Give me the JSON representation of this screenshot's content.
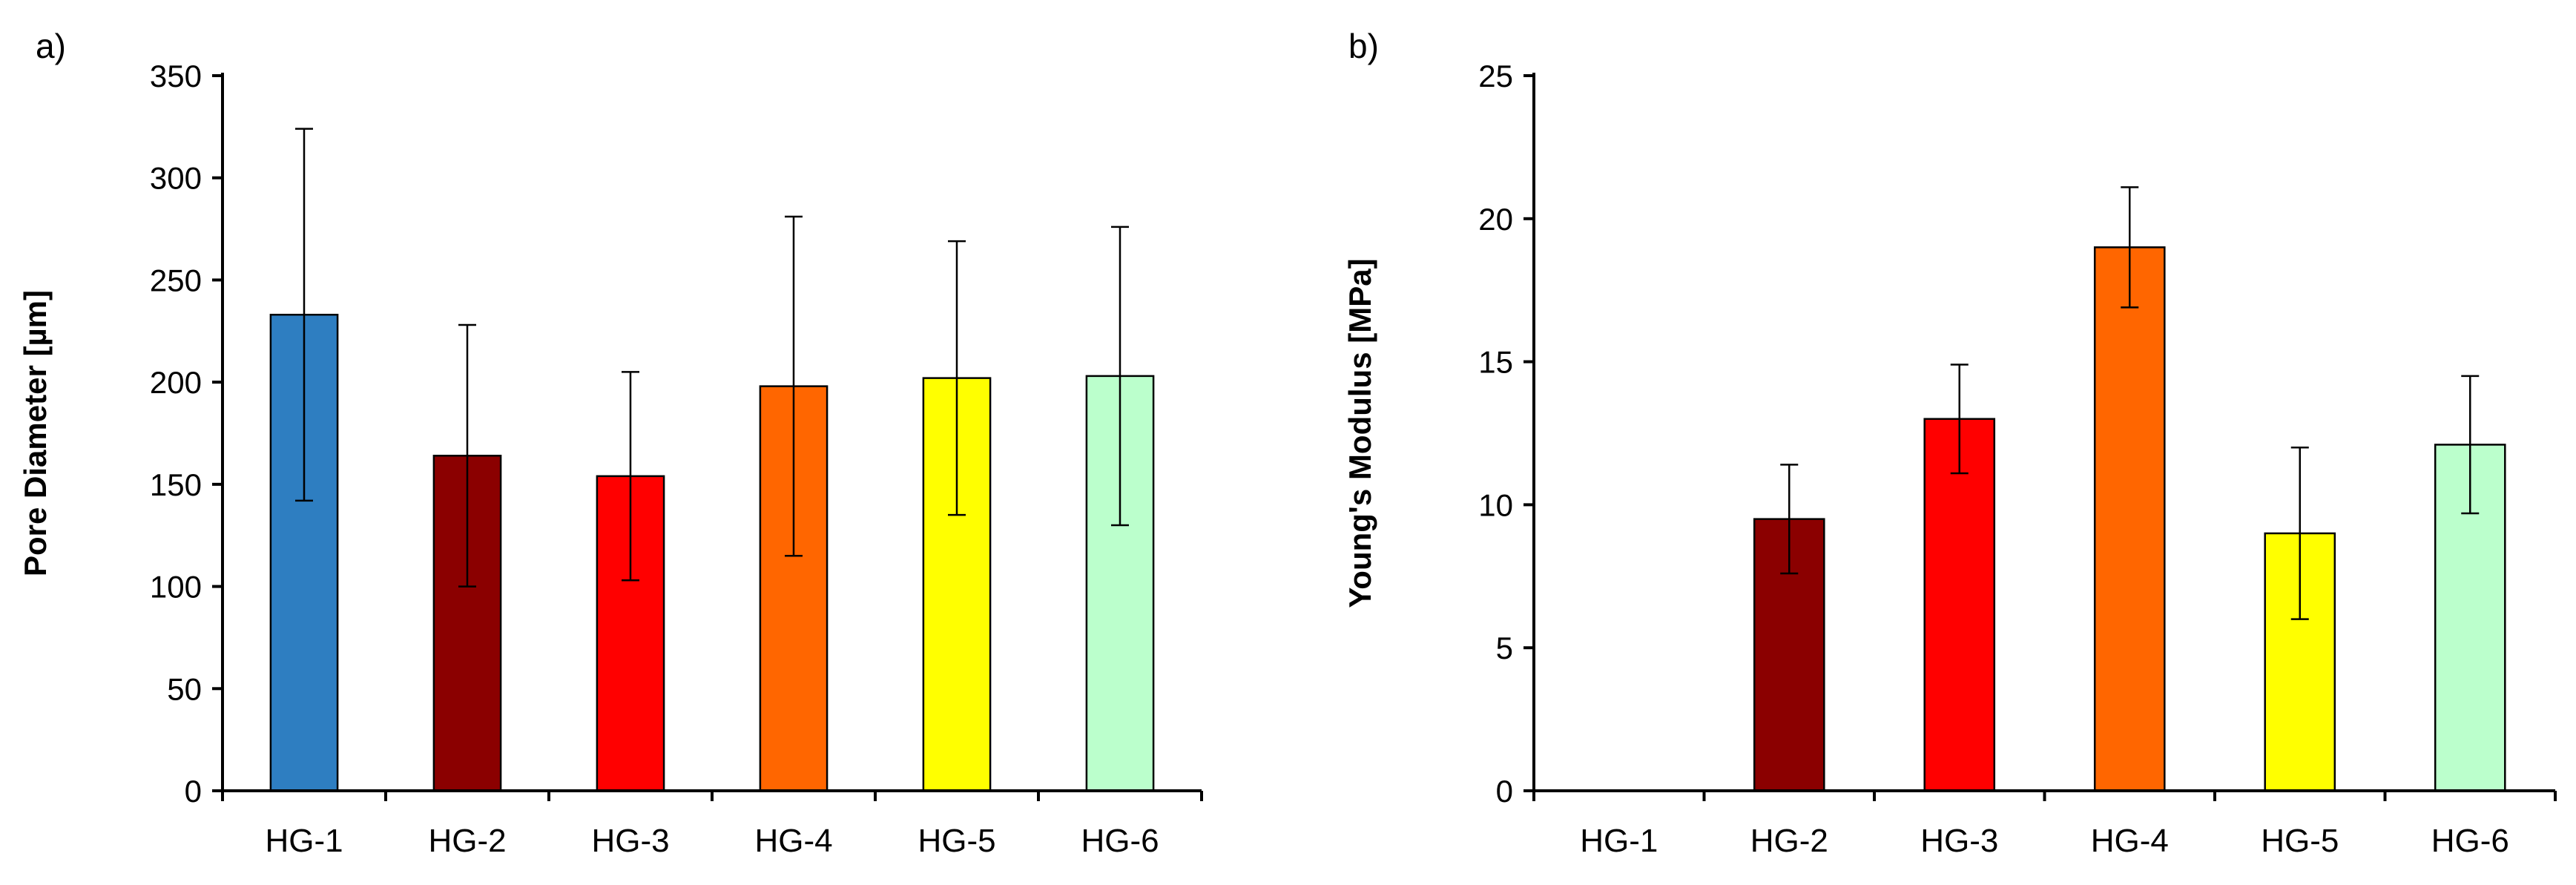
{
  "chart_data": [
    {
      "type": "bar",
      "panel_label": "a)",
      "title": "",
      "xlabel": "",
      "ylabel": "Pore Diameter [µm]",
      "ylim": [
        0,
        350
      ],
      "yticks": [
        0,
        50,
        100,
        150,
        200,
        250,
        300,
        350
      ],
      "categories": [
        "HG-1",
        "HG-2",
        "HG-3",
        "HG-4",
        "HG-5",
        "HG-6"
      ],
      "values": [
        233,
        164,
        154,
        198,
        202,
        203
      ],
      "errors": [
        91,
        64,
        51,
        83,
        67,
        73
      ],
      "colors": [
        "#2E7EC1",
        "#8B0000",
        "#FF0000",
        "#FF6600",
        "#FFFF00",
        "#BBFFCC"
      ],
      "grid": false,
      "legend": "none"
    },
    {
      "type": "bar",
      "panel_label": "b)",
      "title": "",
      "xlabel": "",
      "ylabel": "Young's Modulus [MPa]",
      "ylim": [
        0,
        25
      ],
      "yticks": [
        0,
        5,
        10,
        15,
        20,
        25
      ],
      "categories": [
        "HG-1",
        "HG-2",
        "HG-3",
        "HG-4",
        "HG-5",
        "HG-6"
      ],
      "values": [
        0,
        9.5,
        13.0,
        19.0,
        9.0,
        12.1
      ],
      "errors": [
        0,
        1.9,
        1.9,
        2.1,
        3.0,
        2.4
      ],
      "colors": [
        "#2E7EC1",
        "#8B0000",
        "#FF0000",
        "#FF6600",
        "#FFFF00",
        "#BBFFCC"
      ],
      "grid": false,
      "legend": "none"
    }
  ]
}
